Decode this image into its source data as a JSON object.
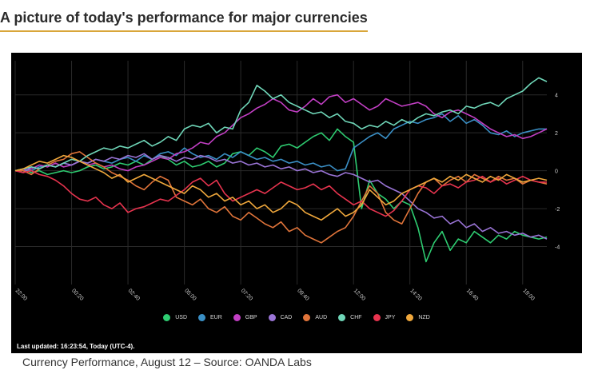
{
  "heading": "A picture of today's performance for major currencies",
  "last_updated": "Last updated: 16:23:54, Today (UTC-4).",
  "caption": "Currency Performance, August 12 – Source: OANDA Labs",
  "chart_data": {
    "type": "line",
    "xlabel": "",
    "ylabel": "",
    "x": [
      "22:00",
      "22:20",
      "22:40",
      "23:00",
      "23:20",
      "23:40",
      "00:00",
      "00:20",
      "00:40",
      "01:00",
      "01:20",
      "01:40",
      "02:00",
      "02:20",
      "02:40",
      "03:00",
      "03:20",
      "03:40",
      "04:00",
      "04:20",
      "04:40",
      "05:00",
      "05:20",
      "05:40",
      "06:00",
      "06:20",
      "06:40",
      "07:00",
      "07:20",
      "07:40",
      "08:00",
      "08:20",
      "08:40",
      "09:00",
      "09:20",
      "09:40",
      "10:00",
      "10:20",
      "10:40",
      "11:00",
      "11:20",
      "11:40",
      "12:00",
      "12:20",
      "12:40",
      "13:00",
      "13:20",
      "13:40",
      "14:00",
      "14:20",
      "14:40",
      "15:00",
      "15:20",
      "15:40",
      "16:00",
      "16:20",
      "16:40",
      "17:00",
      "17:20",
      "17:40",
      "18:00",
      "18:20",
      "18:40",
      "19:00",
      "19:20",
      "19:40",
      "20:00"
    ],
    "x_ticks": [
      "22:00",
      "00:20",
      "02:40",
      "05:00",
      "07:20",
      "09:40",
      "12:00",
      "14:20",
      "16:40",
      "19:00"
    ],
    "y_ticks": [
      "4",
      "2",
      "0",
      "-2",
      "-4"
    ],
    "ylim": [
      -6,
      5.8
    ],
    "grid": true,
    "legend_position": "bottom",
    "series": [
      {
        "name": "USD",
        "color": "#2ecc71",
        "values": [
          0,
          0.1,
          -0.1,
          0,
          -0.2,
          -0.1,
          0,
          -0.1,
          0,
          0.2,
          0.3,
          0.1,
          0.2,
          0.4,
          0.3,
          0.5,
          0.3,
          0.6,
          0.8,
          0.6,
          0.3,
          0.5,
          0.2,
          0.3,
          0.5,
          0.2,
          0.4,
          0.9,
          1.0,
          0.8,
          1.2,
          1.0,
          0.7,
          1.3,
          1.4,
          1.2,
          1.5,
          1.8,
          2.0,
          1.6,
          2.2,
          1.8,
          1.5,
          -2.0,
          -0.5,
          -1.2,
          -1.5,
          -2.0,
          -1.6,
          -1.8,
          -3.0,
          -4.8,
          -3.8,
          -3.2,
          -4.2,
          -3.6,
          -3.8,
          -3.2,
          -3.5,
          -3.8,
          -3.4,
          -3.6,
          -3.2,
          -3.4,
          -3.5,
          -3.6,
          -3.5
        ]
      },
      {
        "name": "EUR",
        "color": "#3a8fc5",
        "values": [
          0,
          0.1,
          0,
          0.2,
          0.3,
          0.2,
          0.4,
          0.3,
          0.5,
          0.4,
          0.6,
          0.5,
          0.4,
          0.6,
          0.7,
          0.5,
          0.8,
          0.6,
          0.9,
          1.0,
          0.8,
          1.2,
          0.9,
          0.7,
          0.8,
          0.6,
          0.9,
          0.7,
          1.0,
          0.8,
          0.6,
          0.7,
          0.5,
          0.6,
          0.4,
          0.5,
          0.3,
          0.4,
          0.2,
          0.3,
          0,
          0.1,
          1.2,
          1.5,
          1.8,
          2.0,
          1.7,
          2.2,
          2.4,
          2.6,
          2.5,
          2.7,
          2.8,
          3.0,
          2.6,
          2.9,
          2.5,
          2.7,
          2.4,
          2.0,
          1.9,
          2.1,
          1.8,
          2.0,
          2.1,
          2.2,
          2.2
        ]
      },
      {
        "name": "GBP",
        "color": "#c23fc4",
        "values": [
          0,
          0,
          0.1,
          0.3,
          0.2,
          0.4,
          0.2,
          0.3,
          0.5,
          0.3,
          0.4,
          0.2,
          0.3,
          0.1,
          0,
          0.2,
          0.3,
          0.5,
          0.7,
          0.6,
          0.9,
          1.0,
          1.2,
          1.5,
          1.4,
          1.8,
          2.0,
          2.4,
          2.8,
          3.0,
          3.3,
          3.5,
          3.8,
          3.6,
          3.2,
          3.1,
          3.4,
          3.8,
          3.5,
          3.9,
          4.0,
          3.6,
          3.8,
          3.5,
          3.2,
          3.4,
          3.8,
          3.6,
          3.4,
          3.5,
          3.6,
          3.4,
          3.0,
          2.8,
          3.1,
          3.2,
          3.0,
          2.8,
          2.5,
          2.2,
          2.0,
          1.8,
          1.9,
          1.7,
          1.8,
          2.0,
          2.2
        ]
      },
      {
        "name": "CAD",
        "color": "#9a74d6",
        "values": [
          0,
          -0.1,
          0.2,
          0.1,
          0.3,
          0.2,
          0.4,
          0.3,
          0.5,
          0.4,
          0.6,
          0.5,
          0.7,
          0.6,
          0.8,
          0.7,
          0.9,
          0.6,
          0.8,
          0.7,
          0.5,
          0.7,
          0.6,
          0.8,
          0.7,
          0.5,
          0.6,
          0.4,
          0.5,
          0.3,
          0.4,
          0.2,
          0.3,
          0.1,
          0.2,
          0,
          0.1,
          -0.1,
          0,
          -0.2,
          -0.3,
          -0.1,
          -0.2,
          -0.4,
          -0.6,
          -0.5,
          -0.8,
          -1.0,
          -1.2,
          -1.6,
          -2.0,
          -2.2,
          -2.5,
          -2.4,
          -2.8,
          -2.6,
          -3.0,
          -2.8,
          -3.2,
          -3.0,
          -3.3,
          -3.2,
          -3.4,
          -3.3,
          -3.5,
          -3.4,
          -3.6
        ]
      },
      {
        "name": "AUD",
        "color": "#e0743a",
        "values": [
          0,
          0,
          -0.2,
          0.1,
          0.3,
          0.5,
          0.6,
          0.9,
          1.0,
          0.7,
          0.4,
          0.2,
          -0.1,
          -0.3,
          -0.5,
          -0.8,
          -1.0,
          -0.6,
          -0.3,
          -0.5,
          -1.4,
          -1.6,
          -1.8,
          -1.5,
          -2.0,
          -2.2,
          -1.9,
          -2.4,
          -2.6,
          -2.2,
          -2.5,
          -2.8,
          -3.0,
          -2.7,
          -3.2,
          -3.0,
          -3.4,
          -3.6,
          -3.8,
          -3.5,
          -3.2,
          -3.0,
          -2.4,
          -1.6,
          -0.8,
          -1.2,
          -2.2,
          -2.6,
          -2.8,
          -2.0,
          -1.2,
          -0.6,
          -0.4,
          -0.8,
          -0.5,
          -0.3,
          -0.6,
          -0.2,
          -0.4,
          -0.6,
          -0.3,
          -0.5,
          -0.4,
          -0.7,
          -0.5,
          -0.6,
          -0.7
        ]
      },
      {
        "name": "CHF",
        "color": "#6fd6b8",
        "values": [
          0,
          0.1,
          0.2,
          0.1,
          0.3,
          0.2,
          0.4,
          0.6,
          0.5,
          0.8,
          1.0,
          1.2,
          1.1,
          1.3,
          1.2,
          1.4,
          1.6,
          1.3,
          1.5,
          1.8,
          1.6,
          2.2,
          2.4,
          2.3,
          2.5,
          2.0,
          2.3,
          2.2,
          3.2,
          3.6,
          4.5,
          4.2,
          3.8,
          4.0,
          3.6,
          3.4,
          3.2,
          3.0,
          3.1,
          2.8,
          3.0,
          2.6,
          2.5,
          2.2,
          2.4,
          2.3,
          2.6,
          2.4,
          2.7,
          2.5,
          2.8,
          3.0,
          2.9,
          3.1,
          3.2,
          3.0,
          3.4,
          3.3,
          3.5,
          3.6,
          3.4,
          3.8,
          4.0,
          4.2,
          4.6,
          4.9,
          4.7
        ]
      },
      {
        "name": "JPY",
        "color": "#e8344f",
        "values": [
          0,
          -0.1,
          0,
          -0.2,
          -0.3,
          -0.5,
          -0.8,
          -1.2,
          -1.5,
          -1.6,
          -1.4,
          -1.8,
          -2.0,
          -1.7,
          -2.2,
          -2.0,
          -1.9,
          -1.7,
          -1.5,
          -1.6,
          -1.3,
          -1.0,
          -0.6,
          -0.4,
          -0.8,
          -0.5,
          -1.2,
          -1.6,
          -1.4,
          -1.2,
          -1.0,
          -1.2,
          -0.9,
          -0.6,
          -0.8,
          -1.0,
          -0.9,
          -0.7,
          -1.0,
          -0.8,
          -1.2,
          -1.5,
          -1.8,
          -1.6,
          -2.0,
          -2.2,
          -2.4,
          -2.1,
          -1.6,
          -1.0,
          -0.8,
          -0.9,
          -1.2,
          -0.8,
          -0.7,
          -0.9,
          -0.6,
          -0.5,
          -0.3,
          -0.6,
          -0.4,
          -0.7,
          -0.5,
          -0.3,
          -0.5,
          -0.6,
          -0.6
        ]
      },
      {
        "name": "NZD",
        "color": "#f0a83c",
        "values": [
          0,
          0.1,
          0.3,
          0.5,
          0.4,
          0.6,
          0.8,
          0.7,
          0.5,
          0.3,
          0.1,
          -0.1,
          -0.4,
          -0.2,
          -0.6,
          -0.4,
          -0.2,
          -0.4,
          -0.6,
          -0.8,
          -1.0,
          -1.2,
          -0.8,
          -1.0,
          -1.4,
          -1.2,
          -1.6,
          -1.4,
          -1.8,
          -1.6,
          -2.0,
          -1.8,
          -2.2,
          -2.0,
          -1.6,
          -1.8,
          -2.2,
          -2.4,
          -2.6,
          -2.3,
          -2.0,
          -2.4,
          -2.2,
          -1.8,
          -1.0,
          -1.4,
          -1.8,
          -1.6,
          -1.2,
          -1.0,
          -0.8,
          -0.6,
          -0.4,
          -0.6,
          -0.3,
          -0.5,
          -0.2,
          -0.4,
          -0.6,
          -0.3,
          -0.5,
          -0.2,
          -0.4,
          -0.6,
          -0.5,
          -0.4,
          -0.5
        ]
      }
    ]
  }
}
